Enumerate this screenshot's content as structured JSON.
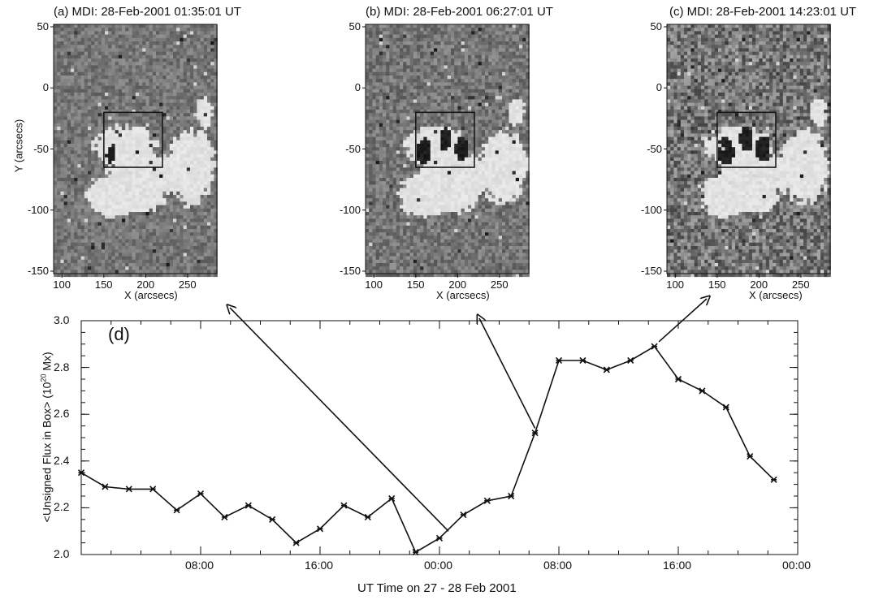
{
  "colors": {
    "ink": "#111111",
    "background": "#ffffff"
  },
  "maps": [
    {
      "title": "(a) MDI: 28-Feb-2001 01:35:01 UT",
      "xlabel": "X (arcsecs)",
      "ylabel": "Y (arcsecs)",
      "noise": 0.12
    },
    {
      "title": "(b) MDI: 28-Feb-2001 06:27:01 UT",
      "xlabel": "X (arcsecs)",
      "ylabel": "",
      "noise": 0.14
    },
    {
      "title": "(c) MDI: 28-Feb-2001 14:23:01 UT",
      "xlabel": "X (arcsecs)",
      "ylabel": "",
      "noise": 0.22
    }
  ],
  "map_xticks": [
    "100",
    "150",
    "200",
    "250"
  ],
  "map_yticks": [
    "50",
    "0",
    "-50",
    "-100",
    "-150"
  ],
  "chart_data": [
    {
      "type": "heatmap",
      "title": "(a) MDI: 28-Feb-2001 01:35:01 UT",
      "xlabel": "X (arcsecs)",
      "ylabel": "Y (arcsecs)",
      "xlim": [
        90,
        285
      ],
      "ylim": [
        -152,
        52
      ],
      "box": {
        "x": [
          150,
          220
        ],
        "y": [
          -65,
          -20
        ]
      }
    },
    {
      "type": "heatmap",
      "title": "(b) MDI: 28-Feb-2001 06:27:01 UT",
      "xlabel": "X (arcsecs)",
      "ylabel": "",
      "xlim": [
        90,
        285
      ],
      "ylim": [
        -152,
        52
      ],
      "box": {
        "x": [
          150,
          220
        ],
        "y": [
          -65,
          -20
        ]
      }
    },
    {
      "type": "heatmap",
      "title": "(c) MDI: 28-Feb-2001 14:23:01 UT",
      "xlabel": "X (arcsecs)",
      "ylabel": "",
      "xlim": [
        90,
        285
      ],
      "ylim": [
        -152,
        52
      ],
      "box": {
        "x": [
          150,
          220
        ],
        "y": [
          -65,
          -20
        ]
      }
    },
    {
      "type": "line",
      "label": "(d)",
      "xlabel": "UT Time on 27 - 28 Feb 2001",
      "ylabel": "<Unsigned Flux in Box> (10",
      "ylabel_sup": "20",
      "ylabel_end": " Mx)",
      "xticks": [
        "08:00",
        "16:00",
        "00:00",
        "08:00",
        "16:00",
        "00:00"
      ],
      "yticks": [
        "2.0",
        "2.2",
        "2.4",
        "2.6",
        "2.8",
        "3.0"
      ],
      "xlim": [
        0,
        48
      ],
      "ylim": [
        2.0,
        3.0
      ],
      "x": [
        0,
        1.6,
        3.2,
        4.8,
        6.4,
        8.0,
        9.6,
        11.2,
        12.8,
        14.4,
        16.0,
        17.6,
        19.2,
        20.8,
        22.4,
        24.0,
        25.6,
        27.2,
        28.8,
        30.4,
        32.0,
        33.6,
        35.2,
        36.8,
        38.4,
        40.0,
        41.6,
        43.2,
        44.8
      ],
      "values": [
        2.35,
        2.29,
        2.28,
        2.28,
        2.19,
        2.26,
        2.16,
        2.21,
        2.15,
        2.05,
        2.11,
        2.21,
        2.16,
        2.24,
        2.01,
        2.07,
        2.17,
        2.23,
        2.25,
        2.52,
        2.83,
        2.83,
        2.79,
        2.83,
        2.89,
        2.75,
        2.7,
        2.63,
        2.42
      ],
      "extra_point": {
        "x": 46.4,
        "y": 2.32
      }
    }
  ]
}
